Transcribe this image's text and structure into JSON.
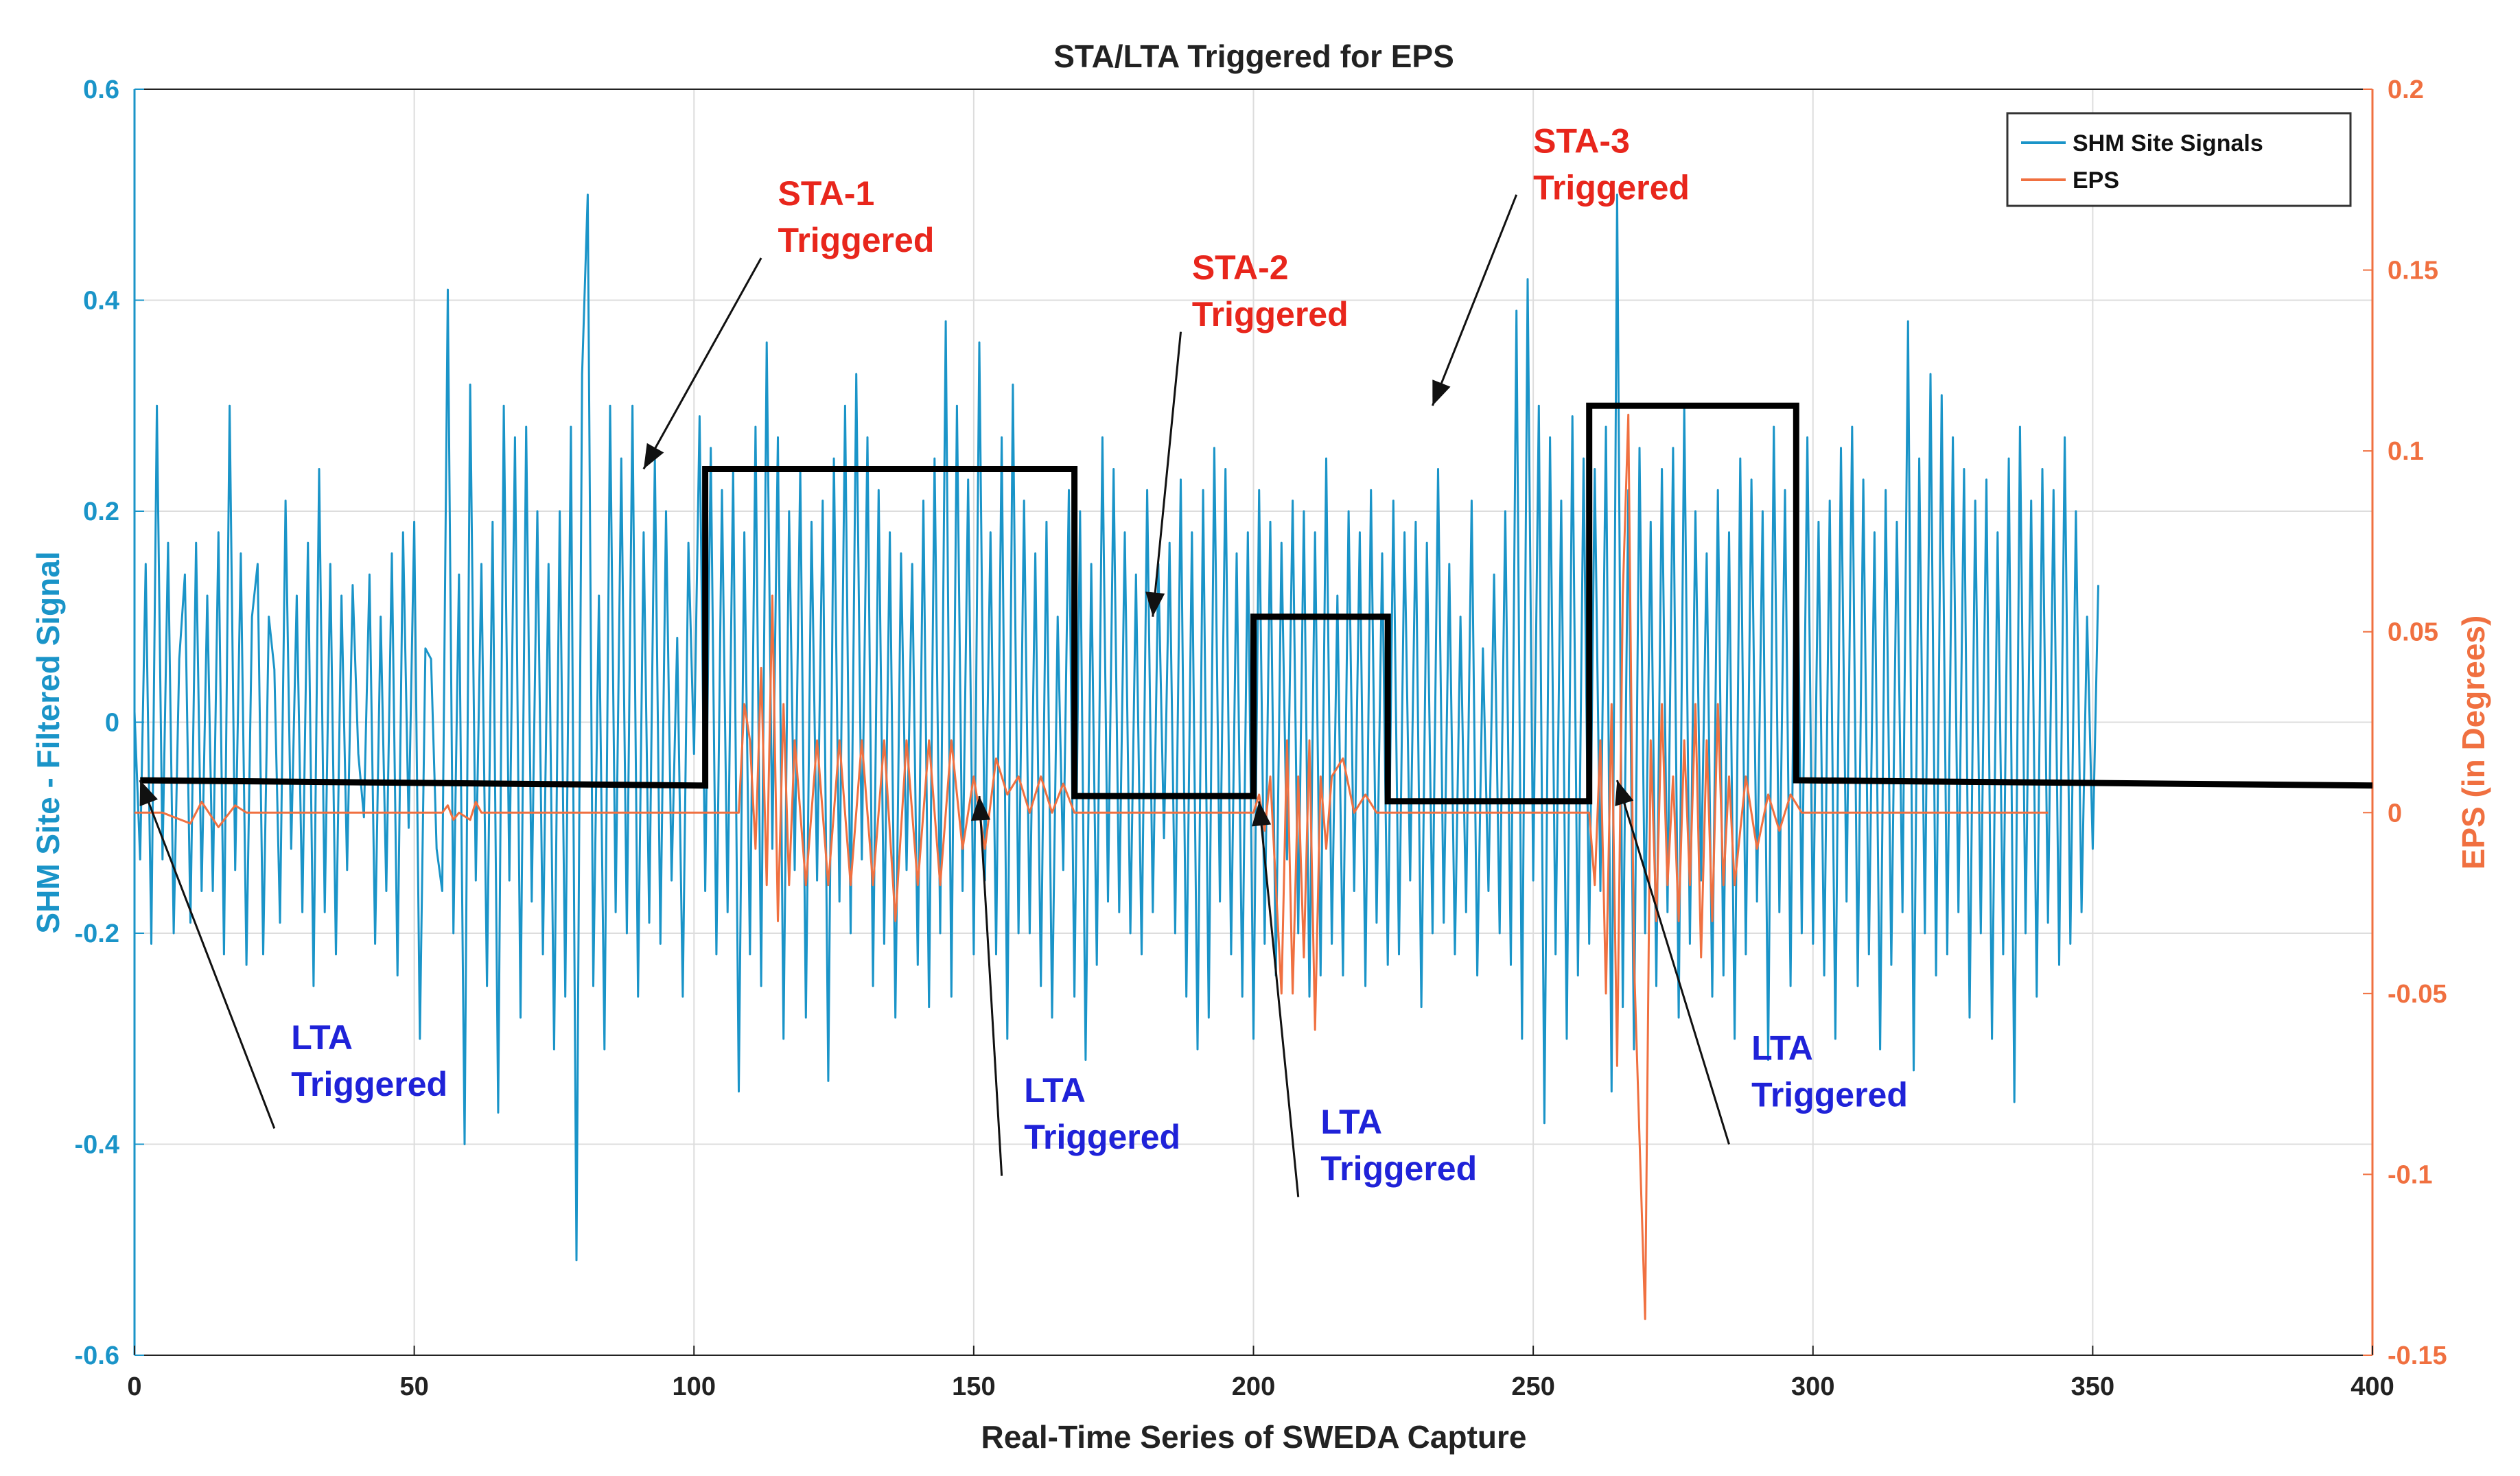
{
  "chart_data": {
    "type": "line",
    "title": "STA/LTA Triggered for EPS",
    "xlabel": "Real-Time Series of SWEDA Capture",
    "ylabel_left": "SHM Site - Filtered Signal",
    "ylabel_right": "EPS (in Degrees)",
    "xlim": [
      0,
      400
    ],
    "ylim_left": [
      -0.6,
      0.6
    ],
    "ylim_right": [
      -0.15,
      0.2
    ],
    "xticks": [
      "0",
      "50",
      "100",
      "150",
      "200",
      "250",
      "300",
      "350",
      "400"
    ],
    "yticks_left": [
      "-0.6",
      "-0.4",
      "-0.2",
      "0",
      "0.2",
      "0.4",
      "0.6"
    ],
    "yticks_right": [
      "-0.15",
      "-0.1",
      "-0.05",
      "0",
      "0.05",
      "0.1",
      "0.15",
      "0.2"
    ],
    "grid": true,
    "legend_position": "top-right",
    "colors": {
      "shm": "#1a94c8",
      "eps": "#f07040",
      "trigger": "#000000",
      "left_axis": "#1a94c8",
      "right_axis": "#f07040",
      "grid": "#dddddd",
      "sta_text": "#e8261c",
      "lta_text": "#1f22d8"
    },
    "legend": [
      {
        "label": "SHM Site Signals",
        "color": "#1a94c8"
      },
      {
        "label": "EPS",
        "color": "#f07040"
      }
    ],
    "series": [
      {
        "name": "SHM Site Signals",
        "axis": "left",
        "x_start": 0,
        "x_step": 1,
        "values": [
          0.01,
          -0.13,
          0.15,
          -0.21,
          0.3,
          -0.13,
          0.17,
          -0.2,
          0.06,
          0.14,
          -0.19,
          0.17,
          -0.16,
          0.12,
          -0.16,
          0.18,
          -0.22,
          0.3,
          -0.14,
          0.16,
          -0.23,
          0.1,
          0.15,
          -0.22,
          0.1,
          0.05,
          -0.19,
          0.21,
          -0.12,
          0.12,
          -0.18,
          0.17,
          -0.25,
          0.24,
          -0.18,
          0.15,
          -0.22,
          0.12,
          -0.14,
          0.13,
          -0.03,
          -0.09,
          0.14,
          -0.21,
          0.1,
          -0.16,
          0.16,
          -0.24,
          0.18,
          -0.1,
          0.19,
          -0.3,
          0.07,
          0.06,
          -0.12,
          -0.16,
          0.41,
          -0.2,
          0.14,
          -0.4,
          0.32,
          -0.15,
          0.15,
          -0.25,
          0.19,
          -0.37,
          0.3,
          -0.15,
          0.27,
          -0.28,
          0.28,
          -0.17,
          0.2,
          -0.22,
          0.15,
          -0.31,
          0.2,
          -0.26,
          0.28,
          -0.51,
          0.33,
          0.5,
          -0.25,
          0.12,
          -0.31,
          0.3,
          -0.18,
          0.25,
          -0.2,
          0.3,
          -0.26,
          0.18,
          -0.19,
          0.25,
          -0.21,
          0.2,
          -0.15,
          0.08,
          -0.26,
          0.17,
          -0.03,
          0.29,
          -0.16,
          0.26,
          -0.22,
          0.22,
          -0.18,
          0.24,
          -0.35,
          0.18,
          -0.22,
          0.28,
          -0.25,
          0.36,
          -0.12,
          0.27,
          -0.3,
          0.2,
          -0.14,
          0.24,
          -0.28,
          0.19,
          -0.15,
          0.21,
          -0.34,
          0.25,
          -0.17,
          0.3,
          -0.2,
          0.33,
          -0.13,
          0.27,
          -0.25,
          0.22,
          -0.21,
          0.18,
          -0.28,
          0.16,
          -0.14,
          0.15,
          -0.23,
          0.21,
          -0.27,
          0.25,
          -0.2,
          0.38,
          -0.26,
          0.3,
          -0.16,
          0.23,
          -0.22,
          0.36,
          -0.15,
          0.18,
          -0.22,
          0.27,
          -0.3,
          0.32,
          -0.2,
          0.21,
          -0.2,
          0.16,
          -0.25,
          0.19,
          -0.28,
          0.1,
          -0.14,
          0.22,
          -0.26,
          0.2,
          -0.32,
          0.15,
          -0.23,
          0.27,
          -0.17,
          0.24,
          -0.18,
          0.18,
          -0.2,
          0.14,
          -0.22,
          0.22,
          -0.18,
          0.15,
          -0.11,
          0.17,
          -0.2,
          0.23,
          -0.26,
          0.18,
          -0.31,
          0.22,
          -0.28,
          0.26,
          -0.17,
          0.24,
          -0.22,
          0.16,
          -0.26,
          0.18,
          -0.3,
          0.22,
          -0.21,
          0.19,
          -0.24,
          0.17,
          -0.13,
          0.21,
          -0.2,
          0.2,
          -0.26,
          0.18,
          -0.24,
          0.25,
          -0.21,
          0.12,
          -0.24,
          0.2,
          -0.16,
          0.18,
          -0.25,
          0.22,
          -0.19,
          0.16,
          -0.23,
          0.21,
          -0.22,
          0.18,
          -0.15,
          0.19,
          -0.27,
          0.17,
          -0.2,
          0.24,
          -0.19,
          0.15,
          -0.22,
          0.1,
          -0.18,
          0.21,
          -0.24,
          0.07,
          -0.16,
          0.14,
          -0.2,
          0.2,
          -0.23,
          0.39,
          -0.3,
          0.42,
          -0.15,
          0.3,
          -0.38,
          0.27,
          -0.22,
          0.21,
          -0.3,
          0.29,
          -0.24,
          0.25,
          -0.21,
          0.24,
          -0.16,
          0.28,
          -0.35,
          0.5,
          -0.27,
          0.22,
          -0.31,
          0.26,
          -0.2,
          0.19,
          -0.25,
          0.24,
          -0.18,
          0.26,
          -0.28,
          0.3,
          -0.21,
          0.2,
          -0.15,
          0.16,
          -0.26,
          0.22,
          -0.24,
          0.18,
          -0.3,
          0.25,
          -0.22,
          0.23,
          -0.17,
          0.2,
          -0.32,
          0.28,
          -0.18,
          0.22,
          -0.25,
          0.3,
          -0.2,
          0.27,
          -0.21,
          0.19,
          -0.24,
          0.21,
          -0.3,
          0.26,
          -0.17,
          0.28,
          -0.25,
          0.23,
          -0.22,
          0.18,
          -0.31,
          0.22,
          -0.23,
          0.19,
          -0.18,
          0.38,
          -0.33,
          0.25,
          -0.2,
          0.33,
          -0.24,
          0.31,
          -0.22,
          0.27,
          -0.18,
          0.24,
          -0.28,
          0.21,
          -0.2,
          0.23,
          -0.3,
          0.18,
          -0.22,
          0.25,
          -0.36,
          0.28,
          -0.2,
          0.21,
          -0.26,
          0.24,
          -0.19,
          0.22,
          -0.23,
          0.27,
          -0.21,
          0.2,
          -0.18,
          0.1,
          -0.12,
          0.13
        ]
      },
      {
        "name": "EPS",
        "axis": "right",
        "points": [
          [
            0,
            0.0
          ],
          [
            5,
            0.0
          ],
          [
            10,
            -0.003
          ],
          [
            12,
            0.003
          ],
          [
            15,
            -0.004
          ],
          [
            18,
            0.002
          ],
          [
            20,
            0.0
          ],
          [
            40,
            0.0
          ],
          [
            55,
            0.0
          ],
          [
            56,
            0.002
          ],
          [
            57,
            -0.002
          ],
          [
            58,
            0.0
          ],
          [
            60,
            -0.002
          ],
          [
            61,
            0.003
          ],
          [
            62,
            0.0
          ],
          [
            80,
            0.0
          ],
          [
            100,
            0.0
          ],
          [
            105,
            0.0
          ],
          [
            108,
            0.0
          ],
          [
            109,
            0.03
          ],
          [
            110,
            0.02
          ],
          [
            111,
            -0.01
          ],
          [
            112,
            0.04
          ],
          [
            113,
            -0.02
          ],
          [
            114,
            0.06
          ],
          [
            115,
            -0.03
          ],
          [
            116,
            0.03
          ],
          [
            117,
            -0.02
          ],
          [
            118,
            0.02
          ],
          [
            120,
            -0.02
          ],
          [
            122,
            0.02
          ],
          [
            124,
            -0.02
          ],
          [
            126,
            0.02
          ],
          [
            128,
            -0.02
          ],
          [
            130,
            0.02
          ],
          [
            132,
            -0.02
          ],
          [
            134,
            0.02
          ],
          [
            136,
            -0.03
          ],
          [
            138,
            0.02
          ],
          [
            140,
            -0.02
          ],
          [
            142,
            0.02
          ],
          [
            144,
            -0.02
          ],
          [
            146,
            0.02
          ],
          [
            148,
            -0.01
          ],
          [
            150,
            0.01
          ],
          [
            152,
            -0.01
          ],
          [
            154,
            0.015
          ],
          [
            156,
            0.005
          ],
          [
            158,
            0.01
          ],
          [
            160,
            0.0
          ],
          [
            162,
            0.01
          ],
          [
            164,
            0.0
          ],
          [
            166,
            0.008
          ],
          [
            168,
            0.0
          ],
          [
            200,
            0.0
          ],
          [
            201,
            0.005
          ],
          [
            202,
            -0.005
          ],
          [
            203,
            0.01
          ],
          [
            204,
            -0.02
          ],
          [
            205,
            -0.05
          ],
          [
            206,
            0.02
          ],
          [
            207,
            -0.05
          ],
          [
            208,
            0.01
          ],
          [
            209,
            -0.04
          ],
          [
            210,
            0.02
          ],
          [
            211,
            -0.06
          ],
          [
            212,
            0.01
          ],
          [
            213,
            -0.01
          ],
          [
            214,
            0.01
          ],
          [
            216,
            0.015
          ],
          [
            218,
            0.0
          ],
          [
            220,
            0.005
          ],
          [
            222,
            0.0
          ],
          [
            224,
            0.0
          ],
          [
            260,
            0.0
          ],
          [
            261,
            -0.02
          ],
          [
            262,
            0.02
          ],
          [
            263,
            -0.05
          ],
          [
            264,
            0.03
          ],
          [
            265,
            -0.07
          ],
          [
            266,
            0.06
          ],
          [
            267,
            0.11
          ],
          [
            268,
            -0.04
          ],
          [
            269,
            -0.09
          ],
          [
            270,
            -0.14
          ],
          [
            271,
            0.02
          ],
          [
            272,
            -0.03
          ],
          [
            273,
            0.03
          ],
          [
            274,
            -0.02
          ],
          [
            275,
            0.01
          ],
          [
            276,
            -0.03
          ],
          [
            277,
            0.02
          ],
          [
            278,
            -0.02
          ],
          [
            279,
            0.03
          ],
          [
            280,
            -0.04
          ],
          [
            281,
            0.02
          ],
          [
            282,
            -0.03
          ],
          [
            283,
            0.03
          ],
          [
            284,
            -0.02
          ],
          [
            285,
            0.01
          ],
          [
            286,
            -0.02
          ],
          [
            288,
            0.01
          ],
          [
            290,
            -0.01
          ],
          [
            292,
            0.005
          ],
          [
            294,
            -0.005
          ],
          [
            296,
            0.005
          ],
          [
            298,
            0.0
          ],
          [
            300,
            0.0
          ],
          [
            320,
            0.0
          ],
          [
            340,
            0.0
          ],
          [
            342,
            0.0
          ]
        ]
      },
      {
        "name": "STA/LTA Trigger",
        "axis": "left",
        "points": [
          [
            1,
            -0.055
          ],
          [
            102,
            -0.06
          ],
          [
            102,
            0.24
          ],
          [
            168,
            0.24
          ],
          [
            168,
            -0.07
          ],
          [
            200,
            -0.07
          ],
          [
            200,
            0.1
          ],
          [
            224,
            0.1
          ],
          [
            224,
            -0.075
          ],
          [
            260,
            -0.075
          ],
          [
            260,
            0.3
          ],
          [
            297,
            0.3
          ],
          [
            297,
            -0.055
          ],
          [
            400,
            -0.06
          ]
        ]
      }
    ],
    "annotations": [
      {
        "id": "sta-1",
        "lines": [
          "STA-1",
          "Triggered"
        ],
        "kind": "sta",
        "text_at": [
          115,
          0.49
        ],
        "arrow_from": [
          112,
          0.44
        ],
        "arrow_to": [
          91,
          0.24
        ]
      },
      {
        "id": "sta-2",
        "lines": [
          "STA-2",
          "Triggered"
        ],
        "kind": "sta",
        "text_at": [
          189,
          0.42
        ],
        "arrow_from": [
          187,
          0.37
        ],
        "arrow_to": [
          182,
          0.1
        ]
      },
      {
        "id": "sta-3",
        "lines": [
          "STA-3",
          "Triggered"
        ],
        "kind": "sta",
        "text_at": [
          250,
          0.54
        ],
        "arrow_from": [
          247,
          0.5
        ],
        "arrow_to": [
          232,
          0.3
        ]
      },
      {
        "id": "lta-1",
        "lines": [
          "LTA",
          "Triggered"
        ],
        "kind": "lta",
        "text_at": [
          28,
          -0.31
        ],
        "arrow_from": [
          25,
          -0.385
        ],
        "arrow_to": [
          1,
          -0.055
        ]
      },
      {
        "id": "lta-2",
        "lines": [
          "LTA",
          "Triggered"
        ],
        "kind": "lta",
        "text_at": [
          159,
          -0.36
        ],
        "arrow_from": [
          155,
          -0.43
        ],
        "arrow_to": [
          151,
          -0.07
        ]
      },
      {
        "id": "lta-3",
        "lines": [
          "LTA",
          "Triggered"
        ],
        "kind": "lta",
        "text_at": [
          212,
          -0.39
        ],
        "arrow_from": [
          208,
          -0.45
        ],
        "arrow_to": [
          201,
          -0.075
        ]
      },
      {
        "id": "lta-4",
        "lines": [
          "LTA",
          "Triggered"
        ],
        "kind": "lta",
        "text_at": [
          289,
          -0.32
        ],
        "arrow_from": [
          285,
          -0.4
        ],
        "arrow_to": [
          265,
          -0.055
        ]
      }
    ]
  }
}
